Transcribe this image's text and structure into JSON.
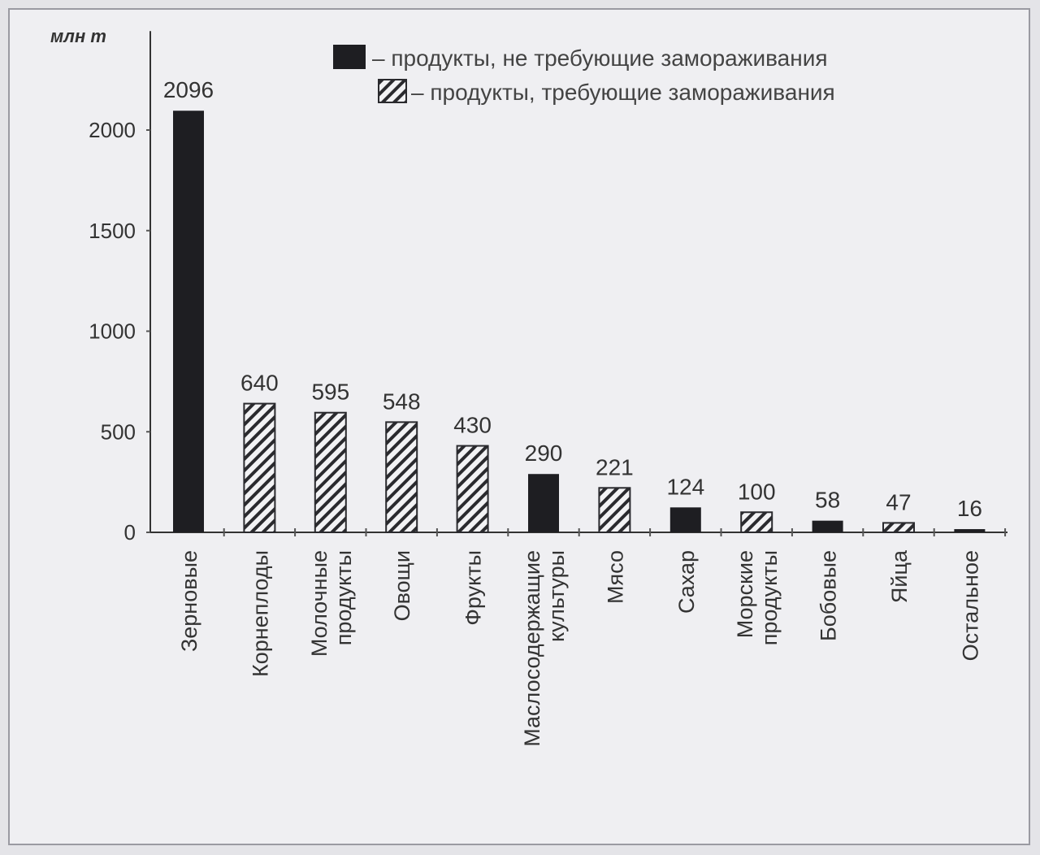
{
  "chart_data": {
    "type": "bar",
    "ylabel": "млн т",
    "ylim": [
      0,
      2500
    ],
    "yticks": [
      0,
      500,
      1000,
      1500,
      2000
    ],
    "grid": false,
    "legend_placement": "top-right",
    "legend": [
      {
        "key": "solid",
        "label": "– продукты, не требующие замораживания"
      },
      {
        "key": "hatched",
        "label": "– продукты, требующие замораживания"
      }
    ],
    "categories": [
      [
        "Зерновые"
      ],
      [
        "Корнеплоды"
      ],
      [
        "Молочные",
        "продукты"
      ],
      [
        "Овощи"
      ],
      [
        "Фрукты"
      ],
      [
        "Маслосодержащие",
        "культуры"
      ],
      [
        "Мясо"
      ],
      [
        "Сахар"
      ],
      [
        "Морские",
        "продукты"
      ],
      [
        "Бобовые"
      ],
      [
        "Яйца"
      ],
      [
        "Остальное"
      ]
    ],
    "values": [
      2096,
      640,
      595,
      548,
      430,
      290,
      221,
      124,
      100,
      58,
      47,
      16
    ],
    "bar_style": [
      "solid",
      "hatched",
      "hatched",
      "hatched",
      "hatched",
      "solid",
      "hatched",
      "solid",
      "hatched",
      "solid",
      "hatched",
      "solid"
    ],
    "colors": {
      "solid": "#1e1e22",
      "hatched": "#2a2a2e",
      "background": "#efeff2"
    }
  }
}
